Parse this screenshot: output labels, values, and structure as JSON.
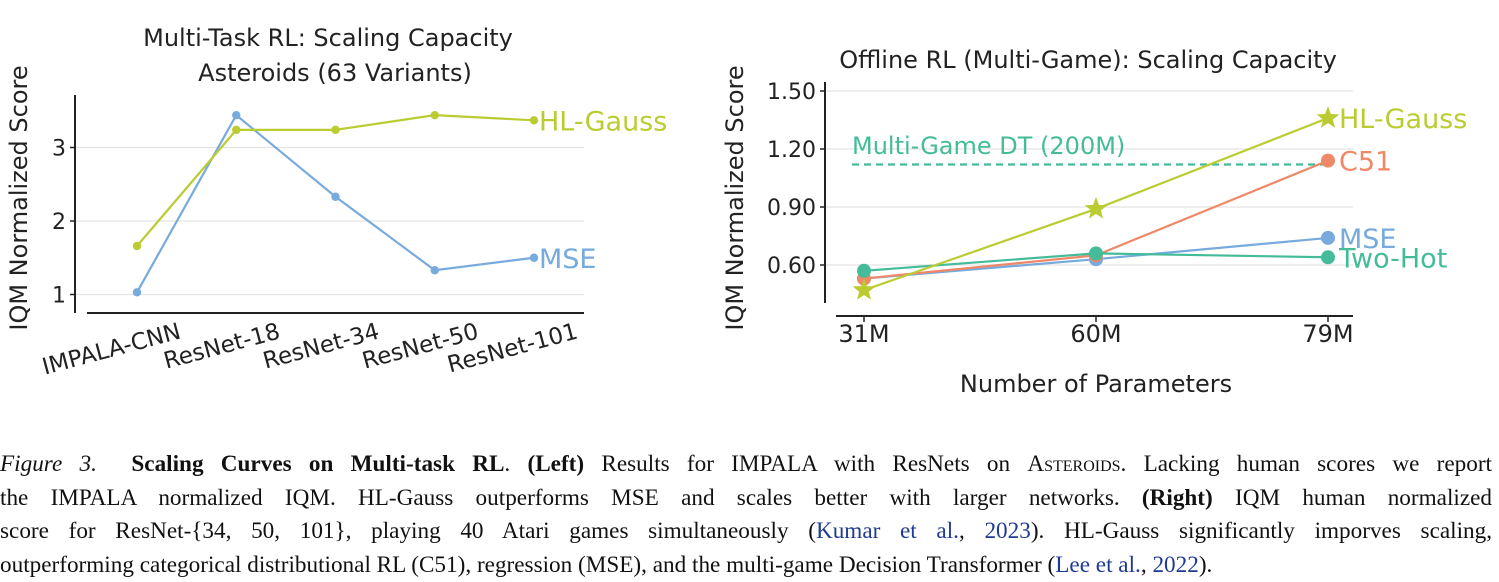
{
  "left_chart_series": [
    {
      "name": "MSE",
      "color": "#77aadd",
      "values": [
        1.03,
        3.44,
        2.33,
        1.33,
        1.5
      ]
    },
    {
      "name": "HL-Gauss",
      "color": "#bbcc33",
      "values": [
        1.66,
        3.24,
        3.24,
        3.44,
        3.37
      ]
    }
  ],
  "chart_data": [
    {
      "type": "line",
      "title": "Multi-Task RL: Scaling Capacity",
      "subtitle": "Asteroids (63 Variants)",
      "xlabel": "",
      "ylabel": "IQM Normalized Score",
      "categories": [
        "IMPALA-CNN",
        "ResNet-18",
        "ResNet-34",
        "ResNet-50",
        "ResNet-101"
      ],
      "yticks": [
        1,
        2,
        3
      ],
      "ylim": [
        0.75,
        3.65
      ],
      "grid": true,
      "series": [
        {
          "name": "MSE",
          "color": "#77aadd",
          "values": [
            1.03,
            3.44,
            2.33,
            1.33,
            1.5
          ]
        },
        {
          "name": "HL-Gauss",
          "color": "#bbcc33",
          "values": [
            1.66,
            3.24,
            3.24,
            3.44,
            3.37
          ]
        }
      ]
    },
    {
      "type": "line",
      "title": "Offline RL (Multi-Game): Scaling Capacity",
      "xlabel": "Number of Parameters",
      "ylabel": "IQM Normalized Score",
      "categories": [
        "31M",
        "60M",
        "79M"
      ],
      "yticks": [
        "0.60",
        "0.90",
        "1.20",
        "1.50"
      ],
      "ylim": [
        0.37,
        1.52
      ],
      "grid": true,
      "reference_line": {
        "label": "Multi-Game DT (200M)",
        "value": 1.12,
        "color": "#44bb99"
      },
      "series": [
        {
          "name": "HL-Gauss",
          "color": "#bbcc33",
          "marker": "star",
          "values": [
            0.47,
            0.89,
            1.36
          ]
        },
        {
          "name": "C51",
          "color": "#ee8866",
          "marker": "circle",
          "values": [
            0.53,
            0.65,
            1.14
          ]
        },
        {
          "name": "MSE",
          "color": "#77aadd",
          "marker": "circle",
          "values": [
            0.53,
            0.63,
            0.74
          ]
        },
        {
          "name": "Two-Hot",
          "color": "#44bb99",
          "marker": "circle",
          "values": [
            0.57,
            0.66,
            0.64
          ]
        }
      ]
    }
  ],
  "caption": {
    "fig_label": "Figure 3.",
    "bold_title": "Scaling Curves on Multi-task RL",
    "period": ".",
    "left_label": "(Left)",
    "left_text_1": " Results for IMPALA with ResNets on ",
    "asteroids": "Asteroids",
    "left_text_2": ". Lacking human scores we report",
    "line2_a": "the IMPALA normalized IQM. HL-Gauss outperforms MSE and scales better with larger networks. ",
    "right_label": "(Right)",
    "line2_b": " IQM human normalized",
    "line3_a": "score for ResNet-{34, 50, 101}, playing 40 Atari games simultaneously (",
    "cite1": "Kumar et al.",
    "comma1": ", ",
    "cite1_year": "2023",
    "line3_b": "). HL-Gauss significantly imporves scaling,",
    "line4_a": "outperforming categorical distributional RL (C51), regression (MSE), and the multi-game Decision Transformer (",
    "cite2": "Lee et al.",
    "comma2": ", ",
    "cite2_year": "2022",
    "line4_b": ")."
  }
}
